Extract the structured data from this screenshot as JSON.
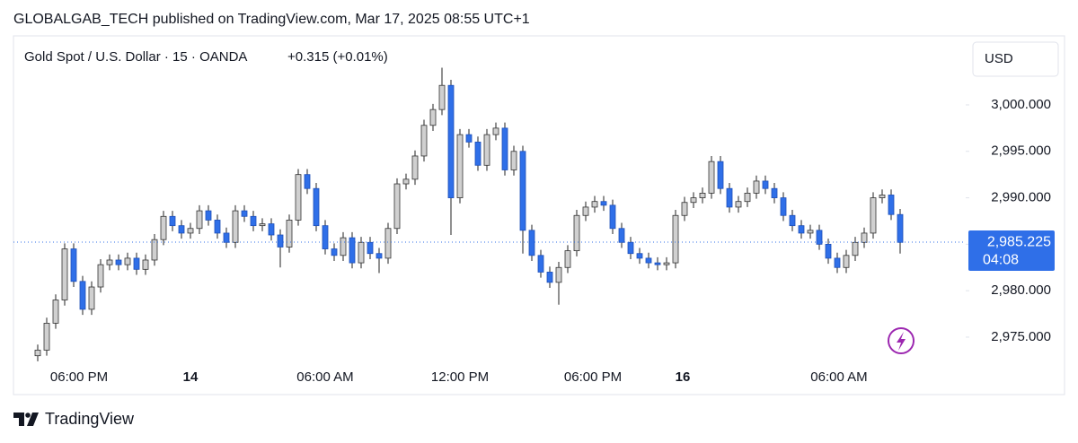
{
  "header": "GLOBALGAB_TECH published on TradingView.com, Mar 17, 2025 08:55 UTC+1",
  "brand": "TradingView",
  "chart_data": {
    "type": "candlestick",
    "title": "Gold Spot / U.S. Dollar · 15 · OANDA",
    "change": "+0.315 (+0.01%)",
    "currency": "USD",
    "last_price": {
      "value": 2985.225,
      "label": "2,985.225"
    },
    "countdown": "04:08",
    "up_color": "#d0d0d0",
    "down_color": "#2f6fe8",
    "wick_color": "#222222",
    "last_price_color": "#2f6fe8",
    "xlim": [
      -2.7,
      103.3
    ],
    "xticks": [
      {
        "value": 4.6,
        "label": "06:00 PM"
      },
      {
        "value": 17,
        "label": "14"
      },
      {
        "value": 32,
        "label": "06:00 AM"
      },
      {
        "value": 47,
        "label": "12:00 PM"
      },
      {
        "value": 61.8,
        "label": "06:00 PM"
      },
      {
        "value": 71.8,
        "label": "16"
      },
      {
        "value": 89.2,
        "label": "06:00 AM"
      }
    ],
    "ylim": [
      2972.68,
      3007.43
    ],
    "yticks": [
      {
        "value": 2975,
        "label": "2,975.000"
      },
      {
        "value": 2980,
        "label": "2,980.000"
      },
      {
        "value": 2985,
        "label": "2,985.000"
      },
      {
        "value": 2990,
        "label": "2,990.000"
      },
      {
        "value": 2995,
        "label": "2,995.000"
      },
      {
        "value": 3000,
        "label": "3,000.000"
      }
    ],
    "open": [
      2973.0,
      2973.6,
      2976.5,
      2979.0,
      2984.5,
      2981.0,
      2978.0,
      2980.4,
      2982.8,
      2983.3,
      2982.8,
      2983.5,
      2982.3,
      2983.3,
      2985.5,
      2988.0,
      2987.0,
      2986.2,
      2986.7,
      2988.6,
      2987.6,
      2986.2,
      2985.2,
      2988.6,
      2988.0,
      2987.0,
      2987.2,
      2986.0,
      2984.7,
      2987.6,
      2992.5,
      2991.0,
      2987.0,
      2984.5,
      2983.8,
      2985.7,
      2983.0,
      2985.2,
      2984.0,
      2983.5,
      2986.7,
      2991.5,
      2992.0,
      2994.5,
      2997.8,
      2999.5,
      3002.1,
      2990.0,
      2996.8,
      2996.0,
      2993.5,
      2996.8,
      2997.5,
      2993.0,
      2995.0,
      2986.5,
      2983.8,
      2982.0,
      2980.9,
      2982.5,
      2984.3,
      2988.1,
      2989.0,
      2989.6,
      2989.2,
      2986.7,
      2985.2,
      2984.0,
      2983.5,
      2983.0,
      2982.8,
      2983.0,
      2988.1,
      2989.5,
      2990.0,
      2990.5,
      2993.9,
      2991.0,
      2989.0,
      2989.6,
      2990.5,
      2991.8,
      2991.0,
      2990.0,
      2988.1,
      2987.0,
      2986.2,
      2986.5,
      2985.0,
      2983.5,
      2982.5,
      2983.8,
      2985.2,
      2986.2,
      2990.0,
      2990.3,
      2988.2
    ],
    "high": [
      2974.2,
      2977.1,
      2979.6,
      2985.1,
      2985.1,
      2981.6,
      2981.0,
      2983.4,
      2983.9,
      2983.9,
      2984.1,
      2984.1,
      2983.9,
      2986.1,
      2988.6,
      2988.6,
      2987.6,
      2987.3,
      2989.2,
      2989.2,
      2988.2,
      2986.8,
      2989.2,
      2989.2,
      2988.6,
      2987.8,
      2987.8,
      2986.6,
      2988.2,
      2993.1,
      2993.1,
      2991.6,
      2987.6,
      2985.1,
      2986.3,
      2986.3,
      2985.8,
      2985.8,
      2984.6,
      2987.3,
      2992.1,
      2992.6,
      2995.1,
      2998.4,
      3000.1,
      3004.0,
      3002.7,
      2997.4,
      2997.4,
      2996.6,
      2997.4,
      2998.1,
      2998.1,
      2995.6,
      2995.6,
      2987.1,
      2984.4,
      2982.6,
      2983.1,
      2984.9,
      2988.7,
      2989.6,
      2990.2,
      2990.2,
      2989.8,
      2987.3,
      2985.8,
      2984.6,
      2984.1,
      2983.6,
      2983.6,
      2988.7,
      2990.1,
      2990.6,
      2991.1,
      2994.5,
      2994.5,
      2991.6,
      2990.2,
      2991.1,
      2992.4,
      2992.4,
      2991.6,
      2990.6,
      2988.7,
      2987.6,
      2987.1,
      2987.1,
      2985.6,
      2984.1,
      2984.4,
      2985.8,
      2986.8,
      2990.6,
      2990.9,
      2990.9,
      2988.8
    ],
    "low": [
      2972.4,
      2973.0,
      2975.9,
      2978.4,
      2980.4,
      2977.4,
      2977.4,
      2979.8,
      2982.2,
      2982.2,
      2982.2,
      2981.7,
      2981.7,
      2982.7,
      2984.9,
      2986.4,
      2985.6,
      2985.6,
      2986.1,
      2987.0,
      2985.6,
      2984.6,
      2984.6,
      2987.4,
      2986.4,
      2986.4,
      2985.4,
      2982.5,
      2984.1,
      2987.0,
      2990.4,
      2986.4,
      2983.9,
      2983.2,
      2983.2,
      2982.4,
      2982.4,
      2983.4,
      2981.9,
      2982.9,
      2986.1,
      2990.9,
      2991.4,
      2993.9,
      2997.2,
      2998.9,
      2986.0,
      2989.4,
      2995.4,
      2992.9,
      2992.9,
      2996.2,
      2992.4,
      2992.4,
      2984.0,
      2983.2,
      2981.4,
      2980.3,
      2978.5,
      2981.9,
      2983.7,
      2987.5,
      2988.4,
      2988.6,
      2986.1,
      2984.6,
      2983.4,
      2982.9,
      2982.4,
      2982.2,
      2982.2,
      2982.4,
      2987.5,
      2988.9,
      2989.4,
      2989.9,
      2990.4,
      2988.4,
      2988.4,
      2989.0,
      2989.9,
      2990.4,
      2989.4,
      2987.5,
      2986.4,
      2985.6,
      2985.6,
      2984.4,
      2982.9,
      2981.9,
      2981.9,
      2983.2,
      2984.6,
      2985.6,
      2989.4,
      2987.6,
      2984.0
    ],
    "close": [
      2973.6,
      2976.5,
      2979.0,
      2984.5,
      2981.0,
      2978.0,
      2980.4,
      2982.8,
      2983.3,
      2982.8,
      2983.5,
      2982.3,
      2983.3,
      2985.5,
      2988.0,
      2987.0,
      2986.2,
      2986.7,
      2988.6,
      2987.6,
      2986.2,
      2985.2,
      2988.6,
      2988.0,
      2987.0,
      2987.2,
      2986.0,
      2984.7,
      2987.6,
      2992.5,
      2991.0,
      2987.0,
      2984.5,
      2983.8,
      2985.7,
      2983.0,
      2985.2,
      2984.0,
      2983.5,
      2986.7,
      2991.5,
      2992.0,
      2994.5,
      2997.8,
      2999.5,
      3002.1,
      2990.0,
      2996.8,
      2996.0,
      2993.5,
      2996.8,
      2997.5,
      2993.0,
      2995.0,
      2986.5,
      2983.8,
      2982.0,
      2980.9,
      2982.5,
      2984.3,
      2988.1,
      2989.0,
      2989.6,
      2989.2,
      2986.7,
      2985.2,
      2984.0,
      2983.5,
      2983.0,
      2982.8,
      2983.0,
      2988.1,
      2989.5,
      2990.0,
      2990.5,
      2993.9,
      2991.0,
      2989.0,
      2989.6,
      2990.5,
      2991.8,
      2991.0,
      2990.0,
      2988.1,
      2987.0,
      2986.2,
      2986.5,
      2985.0,
      2983.5,
      2982.5,
      2983.8,
      2985.2,
      2986.2,
      2990.0,
      2990.3,
      2988.2,
      2985.2
    ]
  }
}
